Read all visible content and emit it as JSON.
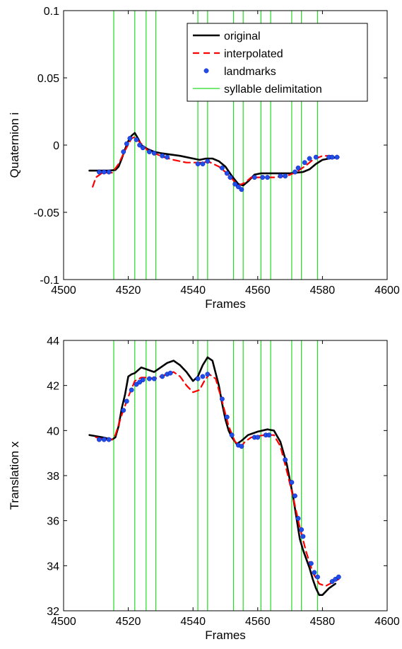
{
  "chart_data": [
    {
      "type": "line",
      "xlabel": "Frames",
      "ylabel": "Quaternion i",
      "xlim": [
        4500,
        4600
      ],
      "ylim": [
        -0.1,
        0.1
      ],
      "x_ticks": [
        4500,
        4520,
        4540,
        4560,
        4580,
        4600
      ],
      "y_ticks": [
        -0.1,
        -0.05,
        0,
        0.05,
        0.1
      ],
      "y_tick_labels": [
        "-0.1",
        "-0.05",
        "0",
        "0.05",
        "0.1"
      ],
      "grid": false,
      "legend_position": "top-right",
      "legend": [
        "original",
        "interpolated",
        "landmarks",
        "syllable delimitation"
      ],
      "delimitations": [
        4515.5,
        4522,
        4525.5,
        4528.5,
        4541.5,
        4544.5,
        4552.5,
        4555.5,
        4561,
        4564,
        4570.5,
        4573.5,
        4578.5
      ],
      "series": [
        {
          "name": "original",
          "style": "solid",
          "color": "#000000",
          "points": [
            [
              4508,
              -0.019
            ],
            [
              4512,
              -0.019
            ],
            [
              4514,
              -0.019
            ],
            [
              4516,
              -0.0185
            ],
            [
              4517,
              -0.016
            ],
            [
              4518,
              -0.01
            ],
            [
              4519,
              -0.003
            ],
            [
              4520,
              0.003
            ],
            [
              4521,
              0.007
            ],
            [
              4522,
              0.009
            ],
            [
              4523,
              0.005
            ],
            [
              4524,
              0.0
            ],
            [
              4526,
              -0.003
            ],
            [
              4528,
              -0.005
            ],
            [
              4530,
              -0.006
            ],
            [
              4533,
              -0.007
            ],
            [
              4536,
              -0.008
            ],
            [
              4540,
              -0.01
            ],
            [
              4542,
              -0.011
            ],
            [
              4544,
              -0.01
            ],
            [
              4546,
              -0.01
            ],
            [
              4548,
              -0.012
            ],
            [
              4550,
              -0.016
            ],
            [
              4552,
              -0.023
            ],
            [
              4554,
              -0.029
            ],
            [
              4555.5,
              -0.03
            ],
            [
              4557,
              -0.027
            ],
            [
              4559,
              -0.022
            ],
            [
              4561,
              -0.021
            ],
            [
              4565,
              -0.021
            ],
            [
              4570,
              -0.021
            ],
            [
              4574,
              -0.02
            ],
            [
              4576,
              -0.018
            ],
            [
              4578,
              -0.014
            ],
            [
              4580,
              -0.011
            ],
            [
              4582,
              -0.01
            ],
            [
              4585,
              -0.009
            ]
          ]
        },
        {
          "name": "interpolated",
          "style": "dashed",
          "color": "#ff0000",
          "points": [
            [
              4509,
              -0.031
            ],
            [
              4510,
              -0.024
            ],
            [
              4512,
              -0.0205
            ],
            [
              4515,
              -0.0205
            ],
            [
              4517,
              -0.014
            ],
            [
              4519,
              -0.004
            ],
            [
              4521,
              0.005
            ],
            [
              4522,
              0.006
            ],
            [
              4524,
              0.001
            ],
            [
              4526,
              -0.004
            ],
            [
              4528,
              -0.006
            ],
            [
              4531,
              -0.009
            ],
            [
              4534,
              -0.011
            ],
            [
              4538,
              -0.013
            ],
            [
              4542,
              -0.013
            ],
            [
              4545,
              -0.0125
            ],
            [
              4548,
              -0.016
            ],
            [
              4550,
              -0.02
            ],
            [
              4552,
              -0.025
            ],
            [
              4554,
              -0.03
            ],
            [
              4556,
              -0.028
            ],
            [
              4558,
              -0.024
            ],
            [
              4561,
              -0.024
            ],
            [
              4565,
              -0.024
            ],
            [
              4569,
              -0.023
            ],
            [
              4572,
              -0.02
            ],
            [
              4575,
              -0.015
            ],
            [
              4577,
              -0.011
            ],
            [
              4580,
              -0.008
            ],
            [
              4584,
              -0.008
            ]
          ]
        },
        {
          "name": "landmarks",
          "style": "markers",
          "color": "#1f4fe6",
          "points": [
            [
              4511,
              -0.02
            ],
            [
              4512.5,
              -0.02
            ],
            [
              4514,
              -0.02
            ],
            [
              4518.5,
              -0.005
            ],
            [
              4519.5,
              0.001
            ],
            [
              4520.5,
              0.005
            ],
            [
              4522.5,
              0.004
            ],
            [
              4523.5,
              0.0
            ],
            [
              4524.5,
              -0.002
            ],
            [
              4526.5,
              -0.005
            ],
            [
              4528,
              -0.006
            ],
            [
              4530.5,
              -0.008
            ],
            [
              4532,
              -0.009
            ],
            [
              4541.5,
              -0.014
            ],
            [
              4543,
              -0.014
            ],
            [
              4544.5,
              -0.012
            ],
            [
              4549,
              -0.017
            ],
            [
              4550.5,
              -0.021
            ],
            [
              4551.5,
              -0.024
            ],
            [
              4553,
              -0.029
            ],
            [
              4554,
              -0.031
            ],
            [
              4555,
              -0.033
            ],
            [
              4559,
              -0.024
            ],
            [
              4561.5,
              -0.024
            ],
            [
              4563,
              -0.024
            ],
            [
              4567,
              -0.023
            ],
            [
              4568.5,
              -0.023
            ],
            [
              4571.5,
              -0.02
            ],
            [
              4572.5,
              -0.017
            ],
            [
              4574.5,
              -0.013
            ],
            [
              4576,
              -0.01
            ],
            [
              4578,
              -0.009
            ],
            [
              4582,
              -0.009
            ],
            [
              4583,
              -0.009
            ],
            [
              4584.5,
              -0.009
            ]
          ]
        }
      ]
    },
    {
      "type": "line",
      "xlabel": "Frames",
      "ylabel": "Translation x",
      "xlim": [
        4500,
        4600
      ],
      "ylim": [
        32,
        44
      ],
      "x_ticks": [
        4500,
        4520,
        4540,
        4560,
        4580,
        4600
      ],
      "y_ticks": [
        32,
        34,
        36,
        38,
        40,
        42,
        44
      ],
      "y_tick_labels": [
        "32",
        "34",
        "36",
        "38",
        "40",
        "42",
        "44"
      ],
      "grid": false,
      "delimitations": [
        4515.5,
        4522,
        4525.5,
        4528.5,
        4541.5,
        4544.5,
        4552.5,
        4555.5,
        4561,
        4564,
        4570.5,
        4573.5,
        4578.5
      ],
      "series": [
        {
          "name": "original",
          "style": "solid",
          "color": "#000000",
          "points": [
            [
              4508,
              39.8
            ],
            [
              4512,
              39.7
            ],
            [
              4515,
              39.6
            ],
            [
              4516,
              39.7
            ],
            [
              4517,
              40.2
            ],
            [
              4518,
              41.0
            ],
            [
              4519,
              41.6
            ],
            [
              4520,
              42.4
            ],
            [
              4521,
              42.5
            ],
            [
              4522,
              42.55
            ],
            [
              4524,
              42.8
            ],
            [
              4526,
              42.7
            ],
            [
              4528,
              42.6
            ],
            [
              4530,
              42.8
            ],
            [
              4532,
              43.0
            ],
            [
              4534,
              43.1
            ],
            [
              4536,
              42.9
            ],
            [
              4538,
              42.6
            ],
            [
              4540,
              42.2
            ],
            [
              4541.5,
              42.4
            ],
            [
              4543,
              42.9
            ],
            [
              4544.5,
              43.25
            ],
            [
              4546,
              43.1
            ],
            [
              4548,
              42.0
            ],
            [
              4549,
              41.2
            ],
            [
              4550,
              40.5
            ],
            [
              4551,
              40.0
            ],
            [
              4552,
              39.7
            ],
            [
              4553.5,
              39.4
            ],
            [
              4555,
              39.55
            ],
            [
              4557,
              39.8
            ],
            [
              4560,
              39.95
            ],
            [
              4563,
              40.05
            ],
            [
              4565,
              40.0
            ],
            [
              4567,
              39.5
            ],
            [
              4569,
              38.5
            ],
            [
              4571,
              37.0
            ],
            [
              4573,
              35.2
            ],
            [
              4574,
              34.7
            ],
            [
              4576,
              33.9
            ],
            [
              4577,
              33.4
            ],
            [
              4578,
              33.0
            ],
            [
              4579,
              32.7
            ],
            [
              4580,
              32.7
            ],
            [
              4582,
              33.0
            ],
            [
              4584,
              33.2
            ]
          ]
        },
        {
          "name": "interpolated",
          "style": "dashed",
          "color": "#ff0000",
          "points": [
            [
              4510,
              39.7
            ],
            [
              4513,
              39.6
            ],
            [
              4515,
              39.6
            ],
            [
              4516,
              39.8
            ],
            [
              4518,
              40.7
            ],
            [
              4520,
              41.5
            ],
            [
              4522,
              42.2
            ],
            [
              4524,
              42.35
            ],
            [
              4526,
              42.35
            ],
            [
              4528,
              42.3
            ],
            [
              4530,
              42.4
            ],
            [
              4532,
              42.5
            ],
            [
              4534,
              42.6
            ],
            [
              4536,
              42.4
            ],
            [
              4538,
              42.0
            ],
            [
              4540,
              41.7
            ],
            [
              4542,
              41.8
            ],
            [
              4543.5,
              42.2
            ],
            [
              4545,
              42.5
            ],
            [
              4547,
              42.3
            ],
            [
              4549,
              41.3
            ],
            [
              4551,
              40.2
            ],
            [
              4553,
              39.5
            ],
            [
              4555,
              39.3
            ],
            [
              4556,
              39.5
            ],
            [
              4558,
              39.7
            ],
            [
              4562,
              39.8
            ],
            [
              4565,
              39.8
            ],
            [
              4567,
              39.3
            ],
            [
              4569,
              38.2
            ],
            [
              4571,
              37.0
            ],
            [
              4573,
              35.7
            ],
            [
              4575,
              34.6
            ],
            [
              4577,
              33.7
            ],
            [
              4579,
              33.2
            ],
            [
              4581,
              33.1
            ],
            [
              4585,
              33.4
            ]
          ]
        },
        {
          "name": "landmarks",
          "style": "markers",
          "color": "#1f4fe6",
          "points": [
            [
              4511,
              39.6
            ],
            [
              4512.5,
              39.6
            ],
            [
              4514,
              39.6
            ],
            [
              4518.5,
              40.9
            ],
            [
              4519.5,
              41.3
            ],
            [
              4521,
              41.8
            ],
            [
              4522.5,
              42.05
            ],
            [
              4523.5,
              42.15
            ],
            [
              4524.5,
              42.25
            ],
            [
              4526.5,
              42.3
            ],
            [
              4528,
              42.3
            ],
            [
              4530.5,
              42.4
            ],
            [
              4532,
              42.5
            ],
            [
              4533,
              42.55
            ],
            [
              4541.5,
              42.3
            ],
            [
              4543,
              42.4
            ],
            [
              4544.5,
              42.5
            ],
            [
              4549,
              41.4
            ],
            [
              4550.5,
              40.6
            ],
            [
              4552,
              39.8
            ],
            [
              4554,
              39.35
            ],
            [
              4555,
              39.3
            ],
            [
              4559,
              39.7
            ],
            [
              4560,
              39.7
            ],
            [
              4562.5,
              39.8
            ],
            [
              4563.5,
              39.8
            ],
            [
              4568.5,
              38.7
            ],
            [
              4570.5,
              37.7
            ],
            [
              4571.5,
              37.1
            ],
            [
              4572.5,
              36.1
            ],
            [
              4573.5,
              35.6
            ],
            [
              4574,
              35.3
            ],
            [
              4576.5,
              34.1
            ],
            [
              4577.5,
              33.7
            ],
            [
              4578.5,
              33.5
            ],
            [
              4583,
              33.3
            ],
            [
              4584,
              33.4
            ],
            [
              4585,
              33.5
            ]
          ]
        }
      ]
    }
  ]
}
